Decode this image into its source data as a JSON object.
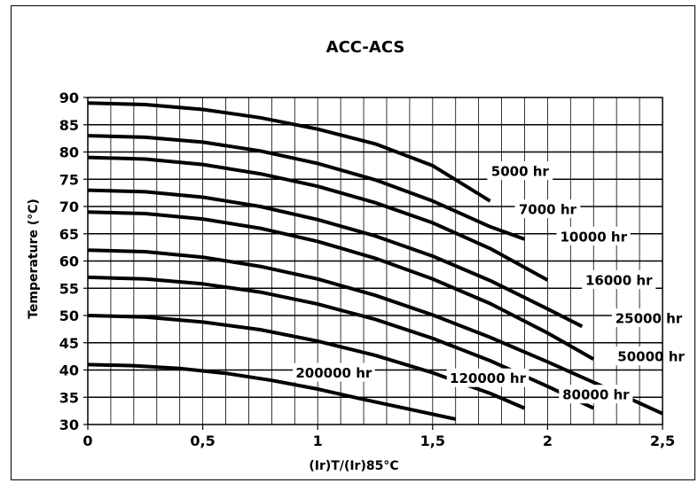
{
  "chart_data": {
    "type": "line",
    "title": "ACC-ACS",
    "xlabel": "(Ir)T/(Ir)85°C",
    "ylabel": "Temperature (°C)",
    "xlim": [
      0,
      2.5
    ],
    "ylim": [
      30,
      90
    ],
    "x_ticks": [
      "0",
      "0,5",
      "1",
      "1,5",
      "2",
      "2,5"
    ],
    "y_ticks": [
      "30",
      "35",
      "40",
      "45",
      "50",
      "55",
      "60",
      "65",
      "70",
      "75",
      "80",
      "85",
      "90"
    ],
    "grid": true,
    "legend": "none",
    "series": [
      {
        "name": "5000 hr",
        "x": [
          0,
          0.25,
          0.5,
          0.75,
          1.0,
          1.25,
          1.5,
          1.75
        ],
        "y": [
          89,
          88.7,
          87.8,
          86.3,
          84.2,
          81.5,
          77.5,
          71
        ]
      },
      {
        "name": "7000 hr",
        "x": [
          0,
          0.25,
          0.5,
          0.75,
          1.0,
          1.25,
          1.5,
          1.75,
          1.9
        ],
        "y": [
          83,
          82.7,
          81.8,
          80.2,
          77.9,
          74.9,
          71,
          66.3,
          64
        ]
      },
      {
        "name": "10000 hr",
        "x": [
          0,
          0.25,
          0.5,
          0.75,
          1.0,
          1.25,
          1.5,
          1.75,
          2.0
        ],
        "y": [
          79,
          78.7,
          77.7,
          76,
          73.7,
          70.7,
          67,
          62.3,
          56.5
        ]
      },
      {
        "name": "16000 hr",
        "x": [
          0,
          0.25,
          0.5,
          0.75,
          1.0,
          1.25,
          1.5,
          1.75,
          2.0,
          2.15
        ],
        "y": [
          73,
          72.7,
          71.7,
          70,
          67.6,
          64.6,
          60.9,
          56.4,
          51.2,
          48
        ]
      },
      {
        "name": "25000 hr",
        "x": [
          0,
          0.25,
          0.5,
          0.75,
          1.0,
          1.25,
          1.5,
          1.75,
          2.0,
          2.2
        ],
        "y": [
          69,
          68.7,
          67.7,
          66,
          63.6,
          60.5,
          56.7,
          52.2,
          46.8,
          42
        ]
      },
      {
        "name": "50000 hr",
        "x": [
          0,
          0.25,
          0.5,
          0.75,
          1.0,
          1.25,
          1.5,
          1.75,
          2.0,
          2.25,
          2.5
        ],
        "y": [
          62,
          61.7,
          60.7,
          59,
          56.7,
          53.7,
          50.1,
          46,
          41.5,
          36.8,
          32
        ]
      },
      {
        "name": "80000 hr",
        "x": [
          0,
          0.25,
          0.5,
          0.75,
          1.0,
          1.25,
          1.5,
          1.75,
          2.0,
          2.2
        ],
        "y": [
          57,
          56.7,
          55.8,
          54.3,
          52.1,
          49.3,
          45.8,
          41.7,
          37,
          33
        ]
      },
      {
        "name": "120000 hr",
        "x": [
          0,
          0.25,
          0.5,
          0.75,
          1.0,
          1.25,
          1.5,
          1.75,
          1.9
        ],
        "y": [
          50,
          49.7,
          48.8,
          47.4,
          45.3,
          42.7,
          39.5,
          35.7,
          33
        ]
      },
      {
        "name": "200000 hr",
        "x": [
          0,
          0.2,
          0.4,
          0.6,
          0.8,
          1.0,
          1.2,
          1.4,
          1.6
        ],
        "y": [
          41,
          40.8,
          40.3,
          39.4,
          38.1,
          36.5,
          34.6,
          32.8,
          31
        ]
      }
    ],
    "annotations": [
      {
        "text": "5000 hr",
        "x": 1.88,
        "y": 76.5
      },
      {
        "text": "7000 hr",
        "x": 2.0,
        "y": 69.5
      },
      {
        "text": "10000 hr",
        "x": 2.2,
        "y": 64.5
      },
      {
        "text": "16000 hr",
        "x": 2.31,
        "y": 56.5
      },
      {
        "text": "25000 hr",
        "x": 2.44,
        "y": 49.5
      },
      {
        "text": "50000 hr",
        "x": 2.45,
        "y": 42.5
      },
      {
        "text": "80000 hr",
        "x": 2.21,
        "y": 35.5
      },
      {
        "text": "120000 hr",
        "x": 1.74,
        "y": 38.5
      },
      {
        "text": "200000 hr",
        "x": 1.07,
        "y": 39.5
      }
    ]
  }
}
